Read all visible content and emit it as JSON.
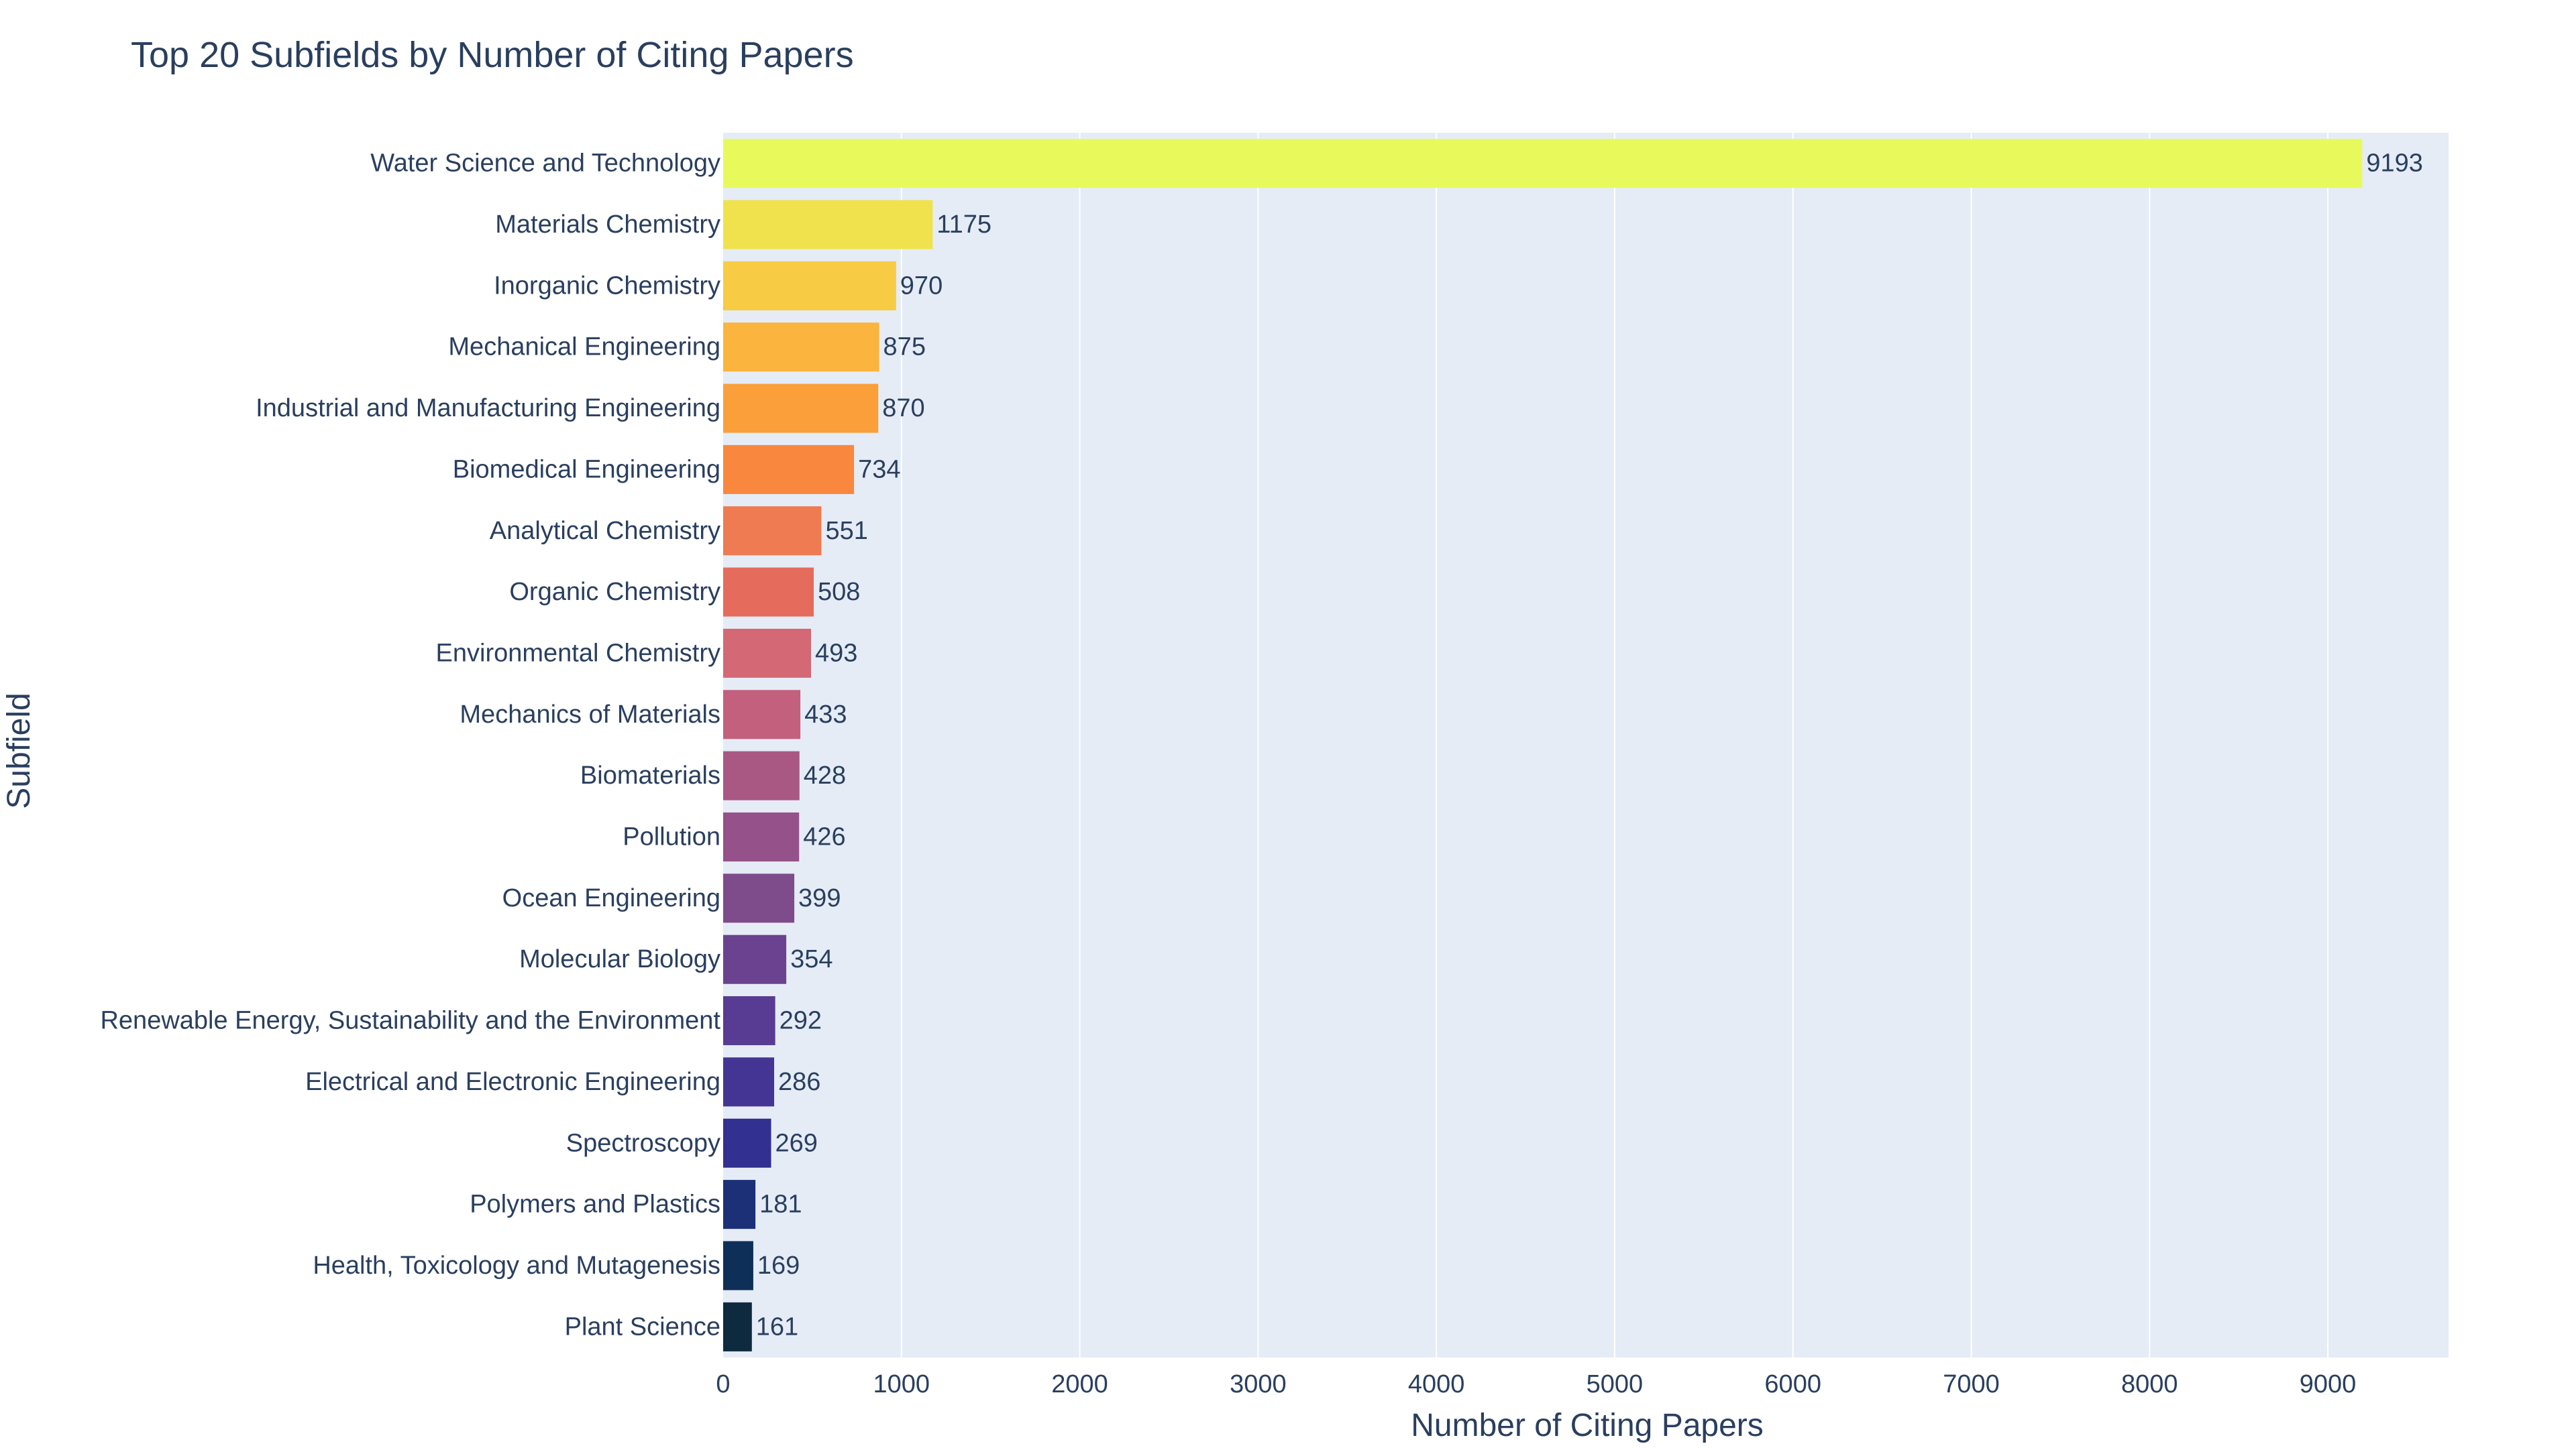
{
  "chart_data": {
    "type": "bar",
    "orientation": "horizontal",
    "title": "Top 20 Subfields by Number of Citing Papers",
    "xlabel": "Number of Citing Papers",
    "ylabel": "Subfield",
    "xlim": [
      0,
      9677
    ],
    "x_ticks": [
      0,
      1000,
      2000,
      3000,
      4000,
      5000,
      6000,
      7000,
      8000,
      9000
    ],
    "grid": true,
    "plot_background": "#e5ecf6",
    "gridline_color": "#ffffff",
    "text_color": "#2a3f5f",
    "categories": [
      "Water Science and Technology",
      "Materials Chemistry",
      "Inorganic Chemistry",
      "Mechanical Engineering",
      "Industrial and Manufacturing Engineering",
      "Biomedical Engineering",
      "Analytical Chemistry",
      "Organic Chemistry",
      "Environmental Chemistry",
      "Mechanics of Materials",
      "Biomaterials",
      "Pollution",
      "Ocean Engineering",
      "Molecular Biology",
      "Renewable Energy, Sustainability and the Environment",
      "Electrical and Electronic Engineering",
      "Spectroscopy",
      "Polymers and Plastics",
      "Health, Toxicology and Mutagenesis",
      "Plant Science"
    ],
    "values": [
      9193,
      1175,
      970,
      875,
      870,
      734,
      551,
      508,
      493,
      433,
      428,
      426,
      399,
      354,
      292,
      286,
      269,
      181,
      169,
      161
    ],
    "colors": [
      "#e8fa5b",
      "#f0e24d",
      "#f7cb44",
      "#fbb43d",
      "#fb9f3a",
      "#f9883e",
      "#ee7b52",
      "#e56b5d",
      "#d46875",
      "#c2607d",
      "#a95883",
      "#955189",
      "#7e4b8b",
      "#6b428f",
      "#583b92",
      "#443594",
      "#323090",
      "#1c3077",
      "#0e2f57",
      "#0d2a3e"
    ]
  }
}
